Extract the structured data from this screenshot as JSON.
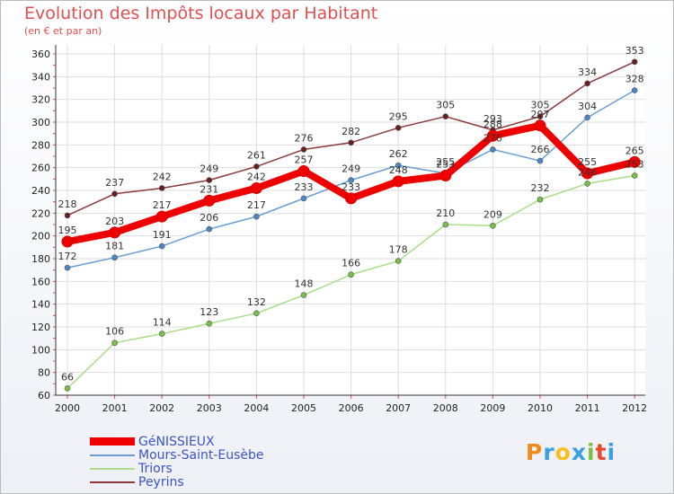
{
  "title": "Evolution des Impôts locaux par Habitant",
  "subtitle": "(en € et par an)",
  "logo": {
    "text": "Proxiti",
    "letters": [
      "P",
      "r",
      "o",
      "x",
      "i",
      "t",
      "i"
    ],
    "colors": [
      "#f08a1c",
      "#3aa0e0",
      "#f5c020",
      "#3aa0e0",
      "#7bc142",
      "#e84a2a",
      "#3aa0e0"
    ]
  },
  "chart_data": {
    "type": "line",
    "title": "Evolution des Impôts locaux par Habitant",
    "subtitle": "(en € et par an)",
    "x": [
      "2000",
      "2001",
      "2002",
      "2003",
      "2004",
      "2005",
      "2006",
      "2007",
      "2008",
      "2009",
      "2010",
      "2011",
      "2012"
    ],
    "ylim": [
      60,
      360
    ],
    "yticks": [
      60,
      80,
      100,
      120,
      140,
      160,
      180,
      200,
      220,
      240,
      260,
      280,
      300,
      320,
      340,
      360
    ],
    "series": [
      {
        "name": "GéNISSIEUX",
        "color": "#ee0000",
        "marker": "#d50000",
        "highlight": true,
        "values": [
          195,
          203,
          217,
          231,
          242,
          257,
          233,
          248,
          253,
          288,
          297,
          255,
          265
        ]
      },
      {
        "name": "Mours-Saint-Eusèbe",
        "color": "#6a9fd4",
        "marker": "#4a86c8",
        "highlight": false,
        "values": [
          172,
          181,
          191,
          206,
          217,
          233,
          249,
          262,
          255,
          276,
          266,
          304,
          328
        ]
      },
      {
        "name": "Triors",
        "color": "#aadd88",
        "marker": "#78c04a",
        "highlight": false,
        "values": [
          66,
          106,
          114,
          123,
          132,
          148,
          166,
          178,
          210,
          209,
          232,
          246,
          253
        ]
      },
      {
        "name": "Peyrins",
        "color": "#8b3a3a",
        "marker": "#6b1e1e",
        "highlight": false,
        "values": [
          218,
          237,
          242,
          249,
          261,
          276,
          282,
          295,
          305,
          293,
          305,
          334,
          353
        ]
      }
    ]
  }
}
